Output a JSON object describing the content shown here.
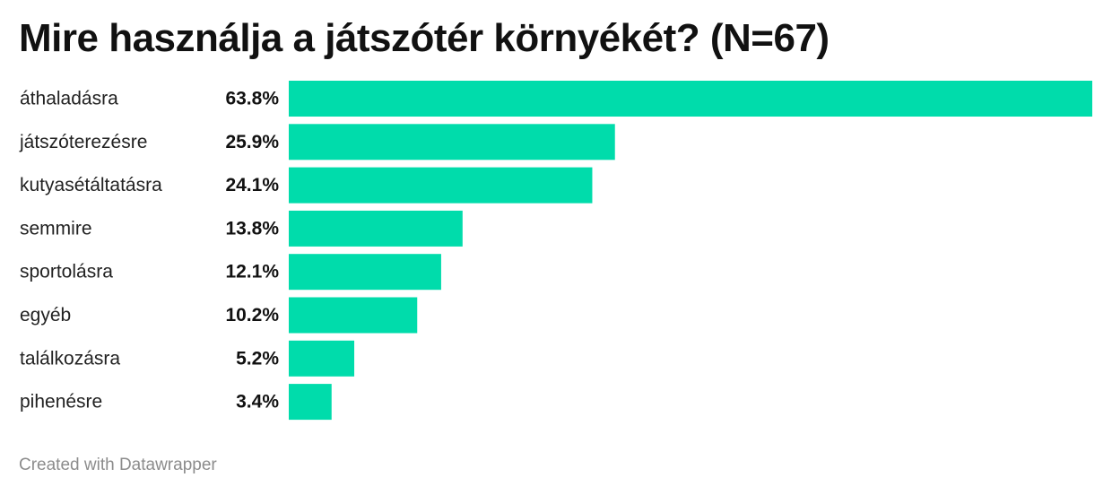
{
  "title": "Mire használja a játszótér környékét? (N=67)",
  "footer": "Created with Datawrapper",
  "colors": {
    "bar": "#00dcab",
    "label": "#222222",
    "value": "#111111"
  },
  "chart_data": {
    "type": "bar",
    "orientation": "horizontal",
    "title": "Mire használja a játszótér környékét? (N=67)",
    "categories": [
      "áthaladásra",
      "játszóterezésre",
      "kutyasétáltatásra",
      "semmire",
      "sportolásra",
      "egyéb",
      "találkozásra",
      "pihenésre"
    ],
    "values": [
      63.8,
      25.9,
      24.1,
      13.8,
      12.1,
      10.2,
      5.2,
      3.4
    ],
    "value_labels": [
      "63.8%",
      "25.9%",
      "24.1%",
      "13.8%",
      "12.1%",
      "10.2%",
      "5.2%",
      "3.4%"
    ],
    "xlim": [
      0,
      63.8
    ],
    "grid": false,
    "legend": "none"
  }
}
